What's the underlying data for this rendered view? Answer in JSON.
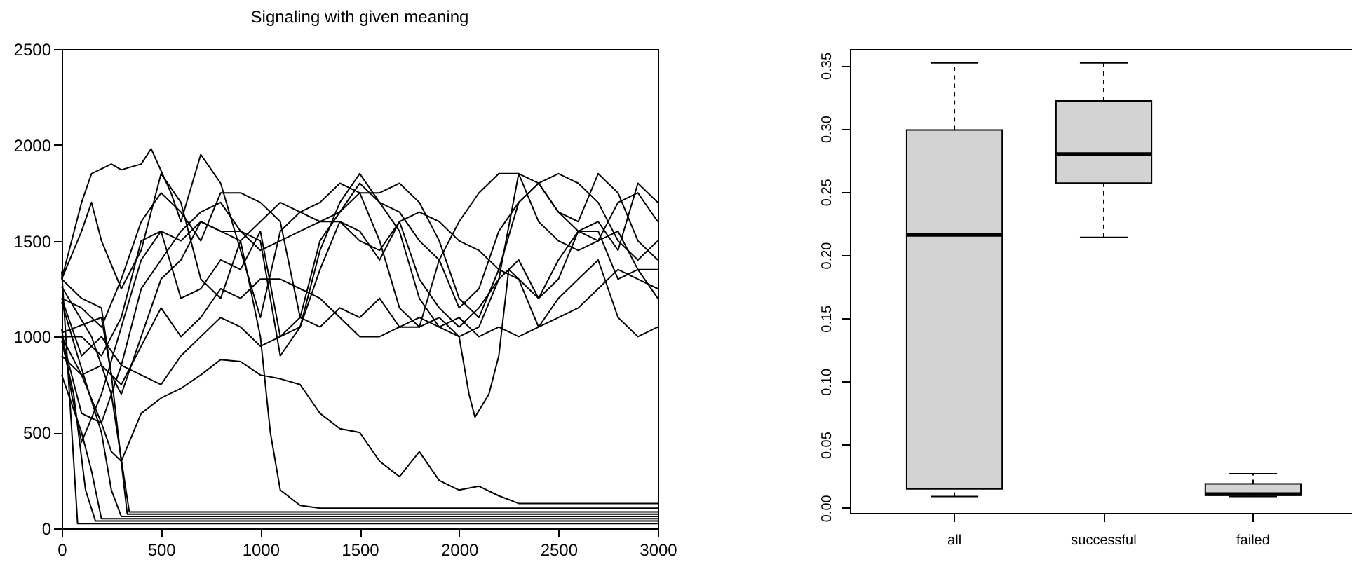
{
  "chart_data": [
    {
      "type": "line",
      "title": "Signaling with given meaning",
      "xlim": [
        0,
        3000
      ],
      "ylim": [
        0,
        2500
      ],
      "xticks": [
        0,
        500,
        1000,
        1500,
        2000,
        2500,
        3000
      ],
      "yticks": [
        0,
        500,
        1000,
        1500,
        2000,
        2500
      ],
      "line_style": "solid",
      "series": [
        {
          "color": "#000000",
          "x": [
            0,
            80,
            3000
          ],
          "values": [
            1340,
            25,
            25
          ]
        },
        {
          "color": "#000000",
          "x": [
            0,
            60,
            120,
            170,
            3000
          ],
          "values": [
            980,
            700,
            200,
            38,
            38
          ]
        },
        {
          "color": "#000000",
          "x": [
            0,
            100,
            150,
            200,
            3000
          ],
          "values": [
            800,
            500,
            300,
            50,
            50
          ]
        },
        {
          "color": "#000000",
          "x": [
            0,
            80,
            200,
            250,
            300,
            3000
          ],
          "values": [
            1180,
            900,
            500,
            200,
            62,
            62
          ]
        },
        {
          "color": "#000000",
          "x": [
            0,
            200,
            250,
            330,
            3000
          ],
          "values": [
            1020,
            1100,
            800,
            74,
            74
          ]
        },
        {
          "color": "#000000",
          "x": [
            0,
            150,
            250,
            340,
            3000
          ],
          "values": [
            1260,
            1000,
            700,
            86,
            86
          ]
        },
        {
          "color": "#000000",
          "x": [
            0,
            50,
            100,
            200,
            300,
            400,
            500,
            600,
            700,
            800,
            900,
            1000,
            1050,
            1100,
            1200,
            1300,
            3000
          ],
          "values": [
            1040,
            700,
            450,
            700,
            1050,
            1400,
            1550,
            1500,
            1600,
            1550,
            1500,
            1000,
            500,
            200,
            120,
            105,
            105
          ]
        },
        {
          "color": "#000000",
          "x": [
            0,
            100,
            200,
            250,
            300,
            400,
            500,
            600,
            700,
            800,
            900,
            1000,
            1100,
            1200,
            1300,
            1400,
            1500,
            1600,
            1700,
            1800,
            1900,
            2000,
            2100,
            2200,
            2300,
            3000
          ],
          "values": [
            1000,
            800,
            550,
            400,
            350,
            600,
            680,
            730,
            800,
            880,
            870,
            800,
            780,
            750,
            600,
            520,
            500,
            350,
            270,
            400,
            250,
            200,
            220,
            170,
            130,
            130
          ]
        },
        {
          "color": "#000000",
          "x": [
            0,
            100,
            150,
            250,
            300,
            400,
            450,
            550,
            600,
            700,
            800,
            900,
            1000,
            1100,
            1200,
            1300,
            1400,
            1500,
            1600,
            1700,
            1800,
            1900,
            2000,
            2100,
            2200,
            2300,
            2400,
            2500,
            2600,
            2700,
            2800,
            2900,
            3000
          ],
          "values": [
            1300,
            1700,
            1850,
            1900,
            1870,
            1900,
            1980,
            1750,
            1600,
            1950,
            1800,
            1450,
            1100,
            1550,
            1650,
            1700,
            1800,
            1750,
            1500,
            1150,
            1050,
            1400,
            1600,
            1750,
            1850,
            1850,
            1600,
            1500,
            1450,
            1500,
            1550,
            1350,
            1200
          ]
        },
        {
          "color": "#000000",
          "x": [
            0,
            100,
            150,
            200,
            300,
            400,
            500,
            600,
            700,
            800,
            900,
            1000,
            1100,
            1200,
            1300,
            1400,
            1500,
            1600,
            1700,
            1800,
            1900,
            2000,
            2100,
            2200,
            2300,
            2400,
            2500,
            2600,
            2700,
            2800,
            2900,
            3000
          ],
          "values": [
            1300,
            1550,
            1700,
            1500,
            1250,
            1450,
            1850,
            1700,
            1300,
            1200,
            1500,
            1600,
            1700,
            1650,
            1600,
            1650,
            1750,
            1750,
            1800,
            1700,
            1500,
            1200,
            1100,
            1350,
            1700,
            1800,
            1850,
            1800,
            1700,
            1500,
            1400,
            1500
          ]
        },
        {
          "color": "#000000",
          "x": [
            0,
            100,
            200,
            250,
            300,
            400,
            500,
            600,
            700,
            800,
            900,
            1000,
            1100,
            1200,
            1300,
            1400,
            1500,
            1600,
            1700,
            1800,
            1900,
            2000,
            2100,
            2200,
            2300,
            2400,
            2500,
            2600,
            2700,
            2800,
            2900,
            3000
          ],
          "values": [
            1000,
            1000,
            900,
            1000,
            1100,
            1500,
            1550,
            1200,
            1250,
            1400,
            1350,
            1550,
            1000,
            1050,
            1350,
            1600,
            1550,
            1400,
            1600,
            1300,
            1150,
            1050,
            1150,
            1300,
            1400,
            1200,
            1400,
            1550,
            1500,
            1700,
            1750,
            1600
          ]
        },
        {
          "color": "#000000",
          "x": [
            0,
            100,
            200,
            300,
            400,
            500,
            600,
            700,
            800,
            900,
            1000,
            1100,
            1200,
            1300,
            1400,
            1500,
            1600,
            1700,
            1800,
            1900,
            2000,
            2100,
            2200,
            2300,
            2400,
            2500,
            2600,
            2700,
            2800,
            2900,
            3000
          ],
          "values": [
            1200,
            1150,
            1050,
            1300,
            1600,
            1750,
            1650,
            1500,
            1750,
            1750,
            1700,
            1600,
            1100,
            1500,
            1650,
            1800,
            1700,
            1550,
            1200,
            1050,
            1000,
            1050,
            1300,
            1850,
            1800,
            1650,
            1550,
            1600,
            1450,
            1800,
            1700
          ]
        },
        {
          "color": "#000000",
          "x": [
            0,
            100,
            200,
            300,
            400,
            500,
            600,
            700,
            800,
            900,
            1000,
            1100,
            1200,
            1300,
            1400,
            1500,
            1600,
            1700,
            1800,
            1900,
            2000,
            2100,
            2200,
            2300,
            2400,
            2500,
            2600,
            2700,
            2800,
            2900,
            3000
          ],
          "values": [
            900,
            800,
            850,
            750,
            950,
            1150,
            1000,
            1100,
            1250,
            1200,
            1300,
            1300,
            1250,
            1200,
            1100,
            1000,
            1000,
            1050,
            1100,
            1050,
            1100,
            1000,
            1050,
            1000,
            1050,
            1100,
            1150,
            1250,
            1350,
            1300,
            1250
          ]
        },
        {
          "color": "#000000",
          "x": [
            0,
            100,
            200,
            300,
            400,
            500,
            600,
            700,
            800,
            900,
            1000,
            1100,
            1200,
            1300,
            1400,
            1500,
            1600,
            1700,
            1800,
            1900,
            2000,
            2050,
            2080,
            2150,
            2200,
            2250,
            2300,
            2400,
            2500,
            2600,
            2700,
            2800,
            2900,
            3000
          ],
          "values": [
            1200,
            900,
            1000,
            850,
            800,
            750,
            900,
            1000,
            1100,
            1050,
            950,
            1000,
            1100,
            1050,
            1150,
            1100,
            1200,
            1050,
            1050,
            1100,
            1000,
            700,
            580,
            700,
            900,
            1350,
            1300,
            1050,
            1200,
            1300,
            1400,
            1100,
            1000,
            1050
          ]
        },
        {
          "color": "#000000",
          "x": [
            0,
            100,
            200,
            250,
            300,
            400,
            500,
            600,
            700,
            800,
            900,
            1000,
            1100,
            1200,
            1300,
            1400,
            1500,
            1600,
            1700,
            1800,
            1900,
            2000,
            2100,
            2200,
            2300,
            2400,
            2500,
            2600,
            2700,
            2800,
            2900,
            3000
          ],
          "values": [
            1300,
            1200,
            1150,
            800,
            700,
            1000,
            1300,
            1400,
            1600,
            1550,
            1550,
            1450,
            1500,
            1550,
            1600,
            1600,
            1500,
            1450,
            1600,
            1650,
            1600,
            1500,
            1450,
            1350,
            1300,
            1200,
            1300,
            1550,
            1550,
            1300,
            1350,
            1350
          ]
        },
        {
          "color": "#000000",
          "x": [
            0,
            100,
            200,
            300,
            400,
            500,
            600,
            700,
            800,
            900,
            1000,
            1100,
            1200,
            1300,
            1400,
            1500,
            1600,
            1700,
            1800,
            1900,
            2000,
            2100,
            2200,
            2300,
            2400,
            2500,
            2600,
            2700,
            2800,
            2900,
            3000
          ],
          "values": [
            1000,
            600,
            550,
            850,
            1250,
            1400,
            1550,
            1650,
            1700,
            1550,
            1500,
            900,
            1050,
            1450,
            1700,
            1850,
            1700,
            1650,
            1500,
            1400,
            1150,
            1250,
            1550,
            1700,
            1800,
            1650,
            1600,
            1850,
            1750,
            1500,
            1400
          ]
        }
      ]
    },
    {
      "type": "box",
      "categories": [
        "all",
        "successful",
        "failed"
      ],
      "color": "#d3d3d3",
      "ylim": [
        -0.004,
        0.363
      ],
      "yticks": [
        {
          "value": 0,
          "label": "0.00"
        },
        {
          "value": 0.05,
          "label": "0.05"
        },
        {
          "value": 0.1,
          "label": "0.10"
        },
        {
          "value": 0.15,
          "label": "0.15"
        },
        {
          "value": 0.2,
          "label": "0.20"
        },
        {
          "value": 0.25,
          "label": "0.25"
        },
        {
          "value": 0.3,
          "label": "0.30"
        },
        {
          "value": 0.35,
          "label": "0.35"
        }
      ],
      "boxes": [
        {
          "low": 0.009,
          "q1": 0.015,
          "median": 0.216,
          "q3": 0.299,
          "high": 0.352
        },
        {
          "low": 0.214,
          "q1": 0.257,
          "median": 0.28,
          "q3": 0.322,
          "high": 0.352
        },
        {
          "low": 0.009,
          "q1": 0.01,
          "median": 0.011,
          "q3": 0.019,
          "high": 0.027
        }
      ]
    }
  ]
}
